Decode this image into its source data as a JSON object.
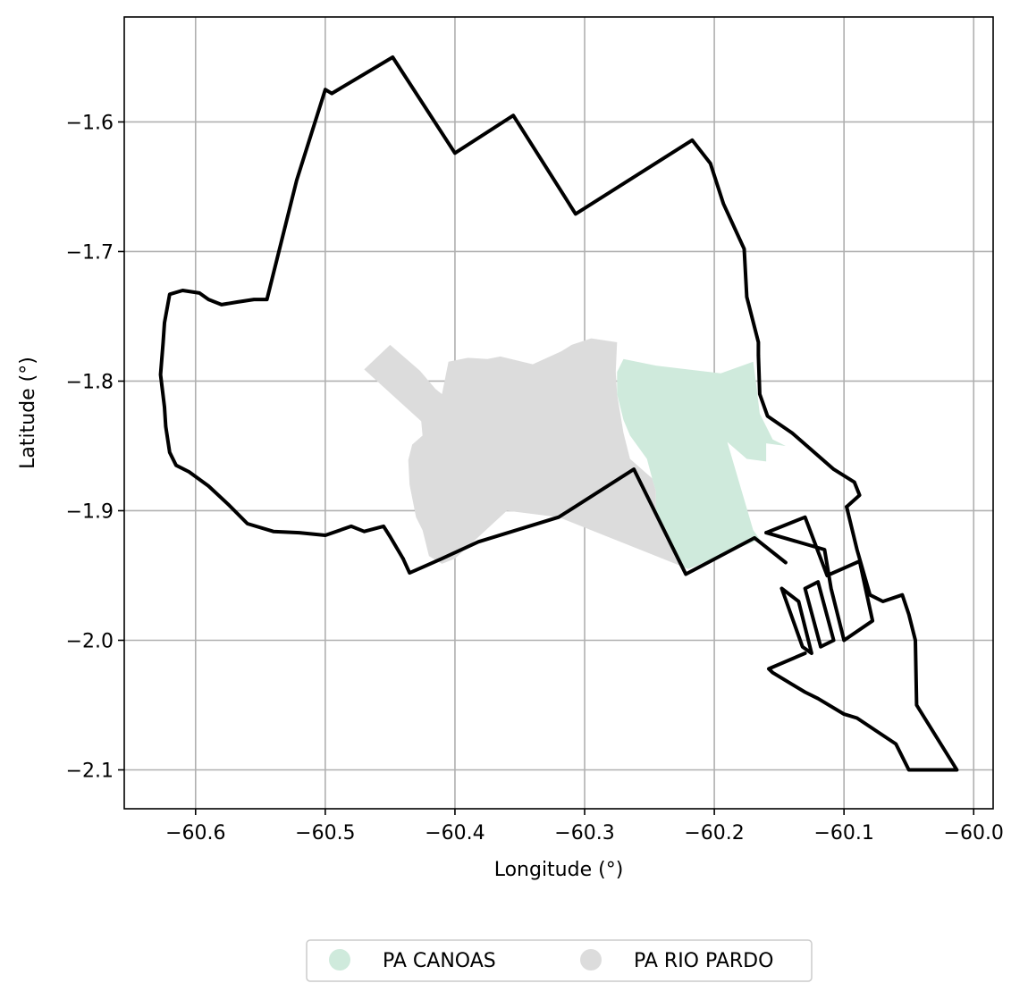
{
  "chart_data": {
    "type": "map",
    "xlabel": "Longitude (°)",
    "ylabel": "Latitude (°)",
    "xlim": [
      -60.655,
      -59.985
    ],
    "ylim": [
      -2.13,
      -1.519
    ],
    "grid": true,
    "x_ticks": [
      {
        "value": -60.6,
        "label": "−60.6"
      },
      {
        "value": -60.5,
        "label": "−60.5"
      },
      {
        "value": -60.4,
        "label": "−60.4"
      },
      {
        "value": -60.3,
        "label": "−60.3"
      },
      {
        "value": -60.2,
        "label": "−60.2"
      },
      {
        "value": -60.1,
        "label": "−60.1"
      },
      {
        "value": -60.0,
        "label": "−60.0"
      }
    ],
    "y_ticks": [
      {
        "value": -1.6,
        "label": "−1.6"
      },
      {
        "value": -1.7,
        "label": "−1.7"
      },
      {
        "value": -1.8,
        "label": "−1.8"
      },
      {
        "value": -1.9,
        "label": "−1.9"
      },
      {
        "value": -2.0,
        "label": "−2.0"
      },
      {
        "value": -2.1,
        "label": "−2.1"
      }
    ],
    "legend": {
      "placement": "bottom-center",
      "entries": [
        {
          "label": "PA CANOAS",
          "color": "#cfeadc"
        },
        {
          "label": "PA RIO PARDO",
          "color": "#dcdcdc"
        }
      ]
    },
    "regions": [
      {
        "name": "PA RIO PARDO",
        "color": "#dcdcdc",
        "coords": [
          [
            -60.47,
            -1.791
          ],
          [
            -60.45,
            -1.772
          ],
          [
            -60.427,
            -1.792
          ],
          [
            -60.415,
            -1.806
          ],
          [
            -60.41,
            -1.81
          ],
          [
            -60.405,
            -1.785
          ],
          [
            -60.39,
            -1.782
          ],
          [
            -60.375,
            -1.783
          ],
          [
            -60.365,
            -1.781
          ],
          [
            -60.34,
            -1.787
          ],
          [
            -60.318,
            -1.777
          ],
          [
            -60.31,
            -1.772
          ],
          [
            -60.295,
            -1.767
          ],
          [
            -60.275,
            -1.77
          ],
          [
            -60.276,
            -1.793
          ],
          [
            -60.275,
            -1.81
          ],
          [
            -60.27,
            -1.84
          ],
          [
            -60.265,
            -1.86
          ],
          [
            -60.248,
            -1.875
          ],
          [
            -60.245,
            -1.885
          ],
          [
            -60.245,
            -1.9
          ],
          [
            -60.237,
            -1.915
          ],
          [
            -60.225,
            -1.94
          ],
          [
            -60.225,
            -1.943
          ],
          [
            -60.32,
            -1.905
          ],
          [
            -60.36,
            -1.9
          ],
          [
            -60.4,
            -1.937
          ],
          [
            -60.41,
            -1.941
          ],
          [
            -60.42,
            -1.935
          ],
          [
            -60.425,
            -1.915
          ],
          [
            -60.43,
            -1.905
          ],
          [
            -60.435,
            -1.88
          ],
          [
            -60.436,
            -1.861
          ],
          [
            -60.433,
            -1.849
          ],
          [
            -60.425,
            -1.842
          ],
          [
            -60.426,
            -1.831
          ],
          [
            -60.47,
            -1.791
          ]
        ]
      },
      {
        "name": "PA CANOAS",
        "color": "#cfeadc",
        "coords": [
          [
            -60.27,
            -1.783
          ],
          [
            -60.245,
            -1.788
          ],
          [
            -60.195,
            -1.794
          ],
          [
            -60.17,
            -1.785
          ],
          [
            -60.168,
            -1.8
          ],
          [
            -60.165,
            -1.825
          ],
          [
            -60.155,
            -1.845
          ],
          [
            -60.145,
            -1.85
          ],
          [
            -60.16,
            -1.848
          ],
          [
            -60.16,
            -1.862
          ],
          [
            -60.175,
            -1.86
          ],
          [
            -60.19,
            -1.847
          ],
          [
            -60.17,
            -1.915
          ],
          [
            -60.165,
            -1.922
          ],
          [
            -60.22,
            -1.945
          ],
          [
            -60.225,
            -1.943
          ],
          [
            -60.237,
            -1.915
          ],
          [
            -60.245,
            -1.9
          ],
          [
            -60.245,
            -1.885
          ],
          [
            -60.248,
            -1.875
          ],
          [
            -60.252,
            -1.86
          ],
          [
            -60.265,
            -1.842
          ],
          [
            -60.27,
            -1.83
          ],
          [
            -60.275,
            -1.81
          ],
          [
            -60.275,
            -1.793
          ],
          [
            -60.27,
            -1.783
          ]
        ]
      }
    ],
    "boundary_lines": [
      {
        "name": "outer-boundary",
        "coords": [
          [
            -60.44,
            -1.937
          ],
          [
            -60.45,
            -1.92
          ],
          [
            -60.455,
            -1.912
          ],
          [
            -60.47,
            -1.916
          ],
          [
            -60.48,
            -1.912
          ],
          [
            -60.5,
            -1.919
          ],
          [
            -60.52,
            -1.917
          ],
          [
            -60.54,
            -1.916
          ],
          [
            -60.56,
            -1.91
          ],
          [
            -60.575,
            -1.895
          ],
          [
            -60.59,
            -1.881
          ],
          [
            -60.605,
            -1.87
          ],
          [
            -60.615,
            -1.865
          ],
          [
            -60.62,
            -1.855
          ],
          [
            -60.623,
            -1.835
          ],
          [
            -60.624,
            -1.82
          ],
          [
            -60.627,
            -1.795
          ],
          [
            -60.625,
            -1.77
          ],
          [
            -60.624,
            -1.755
          ],
          [
            -60.62,
            -1.733
          ],
          [
            -60.61,
            -1.73
          ],
          [
            -60.597,
            -1.732
          ],
          [
            -60.59,
            -1.737
          ],
          [
            -60.58,
            -1.741
          ],
          [
            -60.568,
            -1.739
          ],
          [
            -60.555,
            -1.737
          ],
          [
            -60.545,
            -1.737
          ],
          [
            -60.522,
            -1.645
          ],
          [
            -60.5,
            -1.575
          ],
          [
            -60.495,
            -1.578
          ],
          [
            -60.448,
            -1.55
          ],
          [
            -60.4,
            -1.624
          ],
          [
            -60.355,
            -1.595
          ],
          [
            -60.307,
            -1.671
          ],
          [
            -60.217,
            -1.614
          ],
          [
            -60.203,
            -1.632
          ],
          [
            -60.193,
            -1.663
          ],
          [
            -60.177,
            -1.698
          ],
          [
            -60.175,
            -1.735
          ],
          [
            -60.166,
            -1.77
          ],
          [
            -60.166,
            -1.78
          ],
          [
            -60.165,
            -1.81
          ],
          [
            -60.159,
            -1.827
          ],
          [
            -60.14,
            -1.84
          ],
          [
            -60.108,
            -1.868
          ],
          [
            -60.092,
            -1.878
          ],
          [
            -60.088,
            -1.888
          ],
          [
            -60.098,
            -1.897
          ]
        ]
      },
      {
        "name": "southwest-edge",
        "coords": [
          [
            -60.44,
            -1.937
          ],
          [
            -60.435,
            -1.948
          ],
          [
            -60.41,
            -1.937
          ],
          [
            -60.382,
            -1.924
          ],
          [
            -60.32,
            -1.905
          ],
          [
            -60.262,
            -1.868
          ],
          [
            -60.222,
            -1.949
          ],
          [
            -60.169,
            -1.921
          ],
          [
            -60.145,
            -1.94
          ]
        ]
      },
      {
        "name": "lower-tail",
        "coords": [
          [
            -60.098,
            -1.897
          ],
          [
            -60.09,
            -1.93
          ],
          [
            -60.08,
            -1.965
          ],
          [
            -60.07,
            -1.97
          ],
          [
            -60.055,
            -1.965
          ],
          [
            -60.05,
            -1.98
          ],
          [
            -60.045,
            -2.0
          ],
          [
            -60.044,
            -2.05
          ],
          [
            -60.013,
            -2.1
          ],
          [
            -60.03,
            -2.1
          ],
          [
            -60.05,
            -2.1
          ],
          [
            -60.06,
            -2.08
          ],
          [
            -60.075,
            -2.07
          ],
          [
            -60.09,
            -2.06
          ],
          [
            -60.1,
            -2.057
          ],
          [
            -60.12,
            -2.045
          ],
          [
            -60.13,
            -2.04
          ],
          [
            -60.14,
            -2.034
          ],
          [
            -60.155,
            -2.025
          ],
          [
            -60.158,
            -2.022
          ],
          [
            -60.13,
            -2.01
          ]
        ]
      },
      {
        "name": "strip-1",
        "coords": [
          [
            -60.16,
            -1.917
          ],
          [
            -60.13,
            -1.905
          ],
          [
            -60.113,
            -1.95
          ],
          [
            -60.088,
            -1.939
          ],
          [
            -60.078,
            -1.985
          ],
          [
            -60.1,
            -2.0
          ],
          [
            -60.11,
            -1.96
          ],
          [
            -60.115,
            -1.93
          ],
          [
            -60.16,
            -1.917
          ]
        ]
      },
      {
        "name": "strip-2",
        "coords": [
          [
            -60.148,
            -1.96
          ],
          [
            -60.132,
            -2.005
          ],
          [
            -60.125,
            -2.01
          ],
          [
            -60.135,
            -1.97
          ],
          [
            -60.148,
            -1.96
          ]
        ]
      },
      {
        "name": "strip-3",
        "coords": [
          [
            -60.12,
            -1.955
          ],
          [
            -60.108,
            -2.0
          ],
          [
            -60.118,
            -2.005
          ],
          [
            -60.13,
            -1.96
          ],
          [
            -60.12,
            -1.955
          ]
        ]
      }
    ]
  }
}
